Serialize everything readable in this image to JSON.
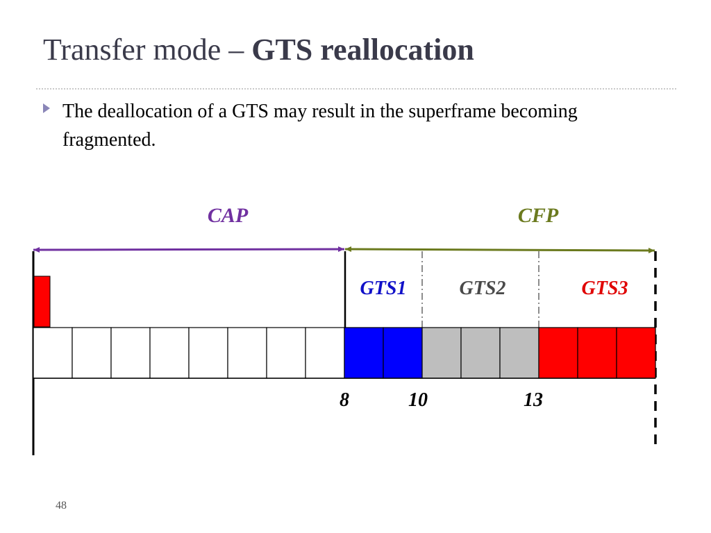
{
  "slide": {
    "title_prefix": "Transfer mode – ",
    "title_bold": "GTS reallocation",
    "bullet": "The deallocation of a GTS may result in the superframe becoming fragmented.",
    "page_number": "48"
  },
  "diagram": {
    "cap_label": "CAP",
    "cfp_label": "CFP",
    "gts_labels": [
      {
        "text": "GTS1",
        "color": "#1010c8"
      },
      {
        "text": "GTS2",
        "color": "#4a4a4a"
      },
      {
        "text": "GTS3",
        "color": "#e00000"
      }
    ],
    "slot_markers": [
      "8",
      "10",
      "13"
    ],
    "slot_count": 16,
    "slot_fills": [
      "#ffffff",
      "#ffffff",
      "#ffffff",
      "#ffffff",
      "#ffffff",
      "#ffffff",
      "#ffffff",
      "#ffffff",
      "#0000ff",
      "#0000ff",
      "#bebebe",
      "#bebebe",
      "#bebebe",
      "#ff0000",
      "#ff0000",
      "#ff0000"
    ],
    "colors": {
      "cap_arrow": "#7030a0",
      "cfp_arrow": "#6b7a1e",
      "beacon": "#ff0000",
      "cap_text": "#7030a0",
      "cfp_text": "#6b7a1e"
    }
  }
}
